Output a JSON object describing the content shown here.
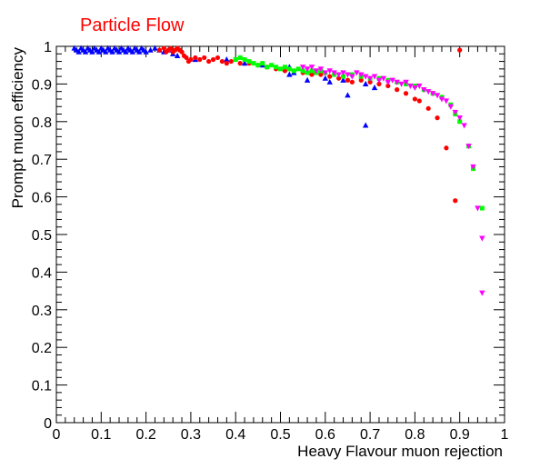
{
  "chart_data": {
    "type": "scatter",
    "title": "Particle Flow",
    "xlabel": "Heavy Flavour muon rejection",
    "ylabel": "Prompt muon efficiency",
    "xlim": [
      0,
      1
    ],
    "ylim": [
      0,
      1
    ],
    "x_ticks": [
      "0",
      "0.1",
      "0.2",
      "0.3",
      "0.4",
      "0.5",
      "0.6",
      "0.7",
      "0.8",
      "0.9",
      "1"
    ],
    "y_ticks": [
      "0",
      "0.1",
      "0.2",
      "0.3",
      "0.4",
      "0.5",
      "0.6",
      "0.7",
      "0.8",
      "0.9",
      "1"
    ],
    "grid": false,
    "colors": {
      "title": "#ff0000",
      "axis": "#000000"
    },
    "series": [
      {
        "marker": "triangle-up",
        "color": "#0000ff",
        "points": [
          [
            0.04,
            0.995
          ],
          [
            0.045,
            0.99
          ],
          [
            0.05,
            0.985
          ],
          [
            0.055,
            0.995
          ],
          [
            0.06,
            0.99
          ],
          [
            0.065,
            0.985
          ],
          [
            0.07,
            0.995
          ],
          [
            0.075,
            0.99
          ],
          [
            0.08,
            0.985
          ],
          [
            0.085,
            0.995
          ],
          [
            0.09,
            0.99
          ],
          [
            0.095,
            0.985
          ],
          [
            0.1,
            0.995
          ],
          [
            0.105,
            0.99
          ],
          [
            0.11,
            0.985
          ],
          [
            0.115,
            0.995
          ],
          [
            0.12,
            0.99
          ],
          [
            0.125,
            0.985
          ],
          [
            0.13,
            0.995
          ],
          [
            0.135,
            0.99
          ],
          [
            0.14,
            0.985
          ],
          [
            0.145,
            0.995
          ],
          [
            0.15,
            0.99
          ],
          [
            0.155,
            0.985
          ],
          [
            0.16,
            0.995
          ],
          [
            0.165,
            0.99
          ],
          [
            0.17,
            0.985
          ],
          [
            0.175,
            0.995
          ],
          [
            0.18,
            0.99
          ],
          [
            0.185,
            0.985
          ],
          [
            0.19,
            0.995
          ],
          [
            0.195,
            0.99
          ],
          [
            0.2,
            0.985
          ],
          [
            0.21,
            0.99
          ],
          [
            0.22,
            0.995
          ],
          [
            0.23,
            0.99
          ],
          [
            0.24,
            0.985
          ],
          [
            0.25,
            0.99
          ],
          [
            0.26,
            0.98
          ],
          [
            0.27,
            0.975
          ],
          [
            0.31,
            0.965
          ],
          [
            0.38,
            0.965
          ],
          [
            0.42,
            0.955
          ],
          [
            0.46,
            0.95
          ],
          [
            0.52,
            0.945
          ],
          [
            0.53,
            0.93
          ],
          [
            0.57,
            0.93
          ],
          [
            0.6,
            0.915
          ],
          [
            0.64,
            0.91
          ],
          [
            0.69,
            0.9
          ],
          [
            0.71,
            0.89
          ],
          [
            0.52,
            0.925
          ],
          [
            0.56,
            0.91
          ],
          [
            0.61,
            0.905
          ],
          [
            0.65,
            0.87
          ],
          [
            0.69,
            0.79
          ]
        ]
      },
      {
        "marker": "circle",
        "color": "#ff0000",
        "points": [
          [
            0.23,
            0.99
          ],
          [
            0.24,
            0.995
          ],
          [
            0.245,
            0.985
          ],
          [
            0.25,
            0.99
          ],
          [
            0.255,
            0.995
          ],
          [
            0.26,
            0.985
          ],
          [
            0.265,
            0.99
          ],
          [
            0.27,
            0.995
          ],
          [
            0.275,
            0.99
          ],
          [
            0.28,
            0.985
          ],
          [
            0.285,
            0.975
          ],
          [
            0.29,
            0.97
          ],
          [
            0.295,
            0.96
          ],
          [
            0.3,
            0.965
          ],
          [
            0.31,
            0.97
          ],
          [
            0.32,
            0.965
          ],
          [
            0.33,
            0.97
          ],
          [
            0.34,
            0.96
          ],
          [
            0.35,
            0.965
          ],
          [
            0.36,
            0.97
          ],
          [
            0.37,
            0.96
          ],
          [
            0.38,
            0.955
          ],
          [
            0.39,
            0.96
          ],
          [
            0.4,
            0.965
          ],
          [
            0.41,
            0.955
          ],
          [
            0.43,
            0.955
          ],
          [
            0.45,
            0.95
          ],
          [
            0.47,
            0.945
          ],
          [
            0.49,
            0.94
          ],
          [
            0.51,
            0.935
          ],
          [
            0.53,
            0.935
          ],
          [
            0.55,
            0.93
          ],
          [
            0.57,
            0.925
          ],
          [
            0.59,
            0.925
          ],
          [
            0.61,
            0.92
          ],
          [
            0.63,
            0.915
          ],
          [
            0.65,
            0.91
          ],
          [
            0.66,
            0.905
          ],
          [
            0.68,
            0.91
          ],
          [
            0.7,
            0.905
          ],
          [
            0.72,
            0.9
          ],
          [
            0.74,
            0.895
          ],
          [
            0.76,
            0.885
          ],
          [
            0.78,
            0.875
          ],
          [
            0.8,
            0.86
          ],
          [
            0.81,
            0.855
          ],
          [
            0.83,
            0.835
          ],
          [
            0.85,
            0.81
          ],
          [
            0.87,
            0.73
          ],
          [
            0.89,
            0.59
          ],
          [
            0.9,
            0.99
          ]
        ]
      },
      {
        "marker": "square",
        "color": "#00ff00",
        "points": [
          [
            0.4,
            0.965
          ],
          [
            0.41,
            0.97
          ],
          [
            0.42,
            0.965
          ],
          [
            0.43,
            0.96
          ],
          [
            0.44,
            0.955
          ],
          [
            0.45,
            0.95
          ],
          [
            0.46,
            0.955
          ],
          [
            0.47,
            0.945
          ],
          [
            0.48,
            0.95
          ],
          [
            0.49,
            0.945
          ],
          [
            0.5,
            0.94
          ],
          [
            0.51,
            0.945
          ],
          [
            0.52,
            0.94
          ],
          [
            0.53,
            0.935
          ],
          [
            0.54,
            0.94
          ],
          [
            0.55,
            0.935
          ],
          [
            0.56,
            0.93
          ],
          [
            0.57,
            0.935
          ],
          [
            0.58,
            0.93
          ],
          [
            0.59,
            0.935
          ],
          [
            0.6,
            0.93
          ],
          [
            0.62,
            0.925
          ],
          [
            0.64,
            0.92
          ],
          [
            0.66,
            0.925
          ],
          [
            0.68,
            0.92
          ],
          [
            0.7,
            0.915
          ],
          [
            0.72,
            0.915
          ],
          [
            0.74,
            0.91
          ],
          [
            0.76,
            0.905
          ],
          [
            0.78,
            0.9
          ],
          [
            0.8,
            0.895
          ],
          [
            0.82,
            0.885
          ],
          [
            0.84,
            0.875
          ],
          [
            0.86,
            0.865
          ],
          [
            0.88,
            0.845
          ],
          [
            0.89,
            0.82
          ],
          [
            0.9,
            0.8
          ],
          [
            0.92,
            0.735
          ],
          [
            0.93,
            0.675
          ],
          [
            0.95,
            0.57
          ]
        ]
      },
      {
        "marker": "triangle-down",
        "color": "#ff00ff",
        "points": [
          [
            0.55,
            0.945
          ],
          [
            0.56,
            0.94
          ],
          [
            0.57,
            0.945
          ],
          [
            0.58,
            0.935
          ],
          [
            0.59,
            0.94
          ],
          [
            0.6,
            0.93
          ],
          [
            0.61,
            0.935
          ],
          [
            0.62,
            0.93
          ],
          [
            0.63,
            0.925
          ],
          [
            0.64,
            0.93
          ],
          [
            0.65,
            0.925
          ],
          [
            0.66,
            0.92
          ],
          [
            0.67,
            0.93
          ],
          [
            0.68,
            0.925
          ],
          [
            0.69,
            0.92
          ],
          [
            0.7,
            0.915
          ],
          [
            0.71,
            0.92
          ],
          [
            0.72,
            0.91
          ],
          [
            0.73,
            0.915
          ],
          [
            0.74,
            0.905
          ],
          [
            0.75,
            0.91
          ],
          [
            0.76,
            0.905
          ],
          [
            0.77,
            0.9
          ],
          [
            0.78,
            0.905
          ],
          [
            0.79,
            0.895
          ],
          [
            0.8,
            0.89
          ],
          [
            0.81,
            0.895
          ],
          [
            0.82,
            0.885
          ],
          [
            0.83,
            0.88
          ],
          [
            0.84,
            0.875
          ],
          [
            0.85,
            0.87
          ],
          [
            0.86,
            0.86
          ],
          [
            0.87,
            0.855
          ],
          [
            0.88,
            0.84
          ],
          [
            0.89,
            0.825
          ],
          [
            0.9,
            0.81
          ],
          [
            0.91,
            0.79
          ],
          [
            0.92,
            0.735
          ],
          [
            0.93,
            0.68
          ],
          [
            0.94,
            0.57
          ],
          [
            0.95,
            0.49
          ],
          [
            0.95,
            0.345
          ]
        ]
      }
    ]
  }
}
